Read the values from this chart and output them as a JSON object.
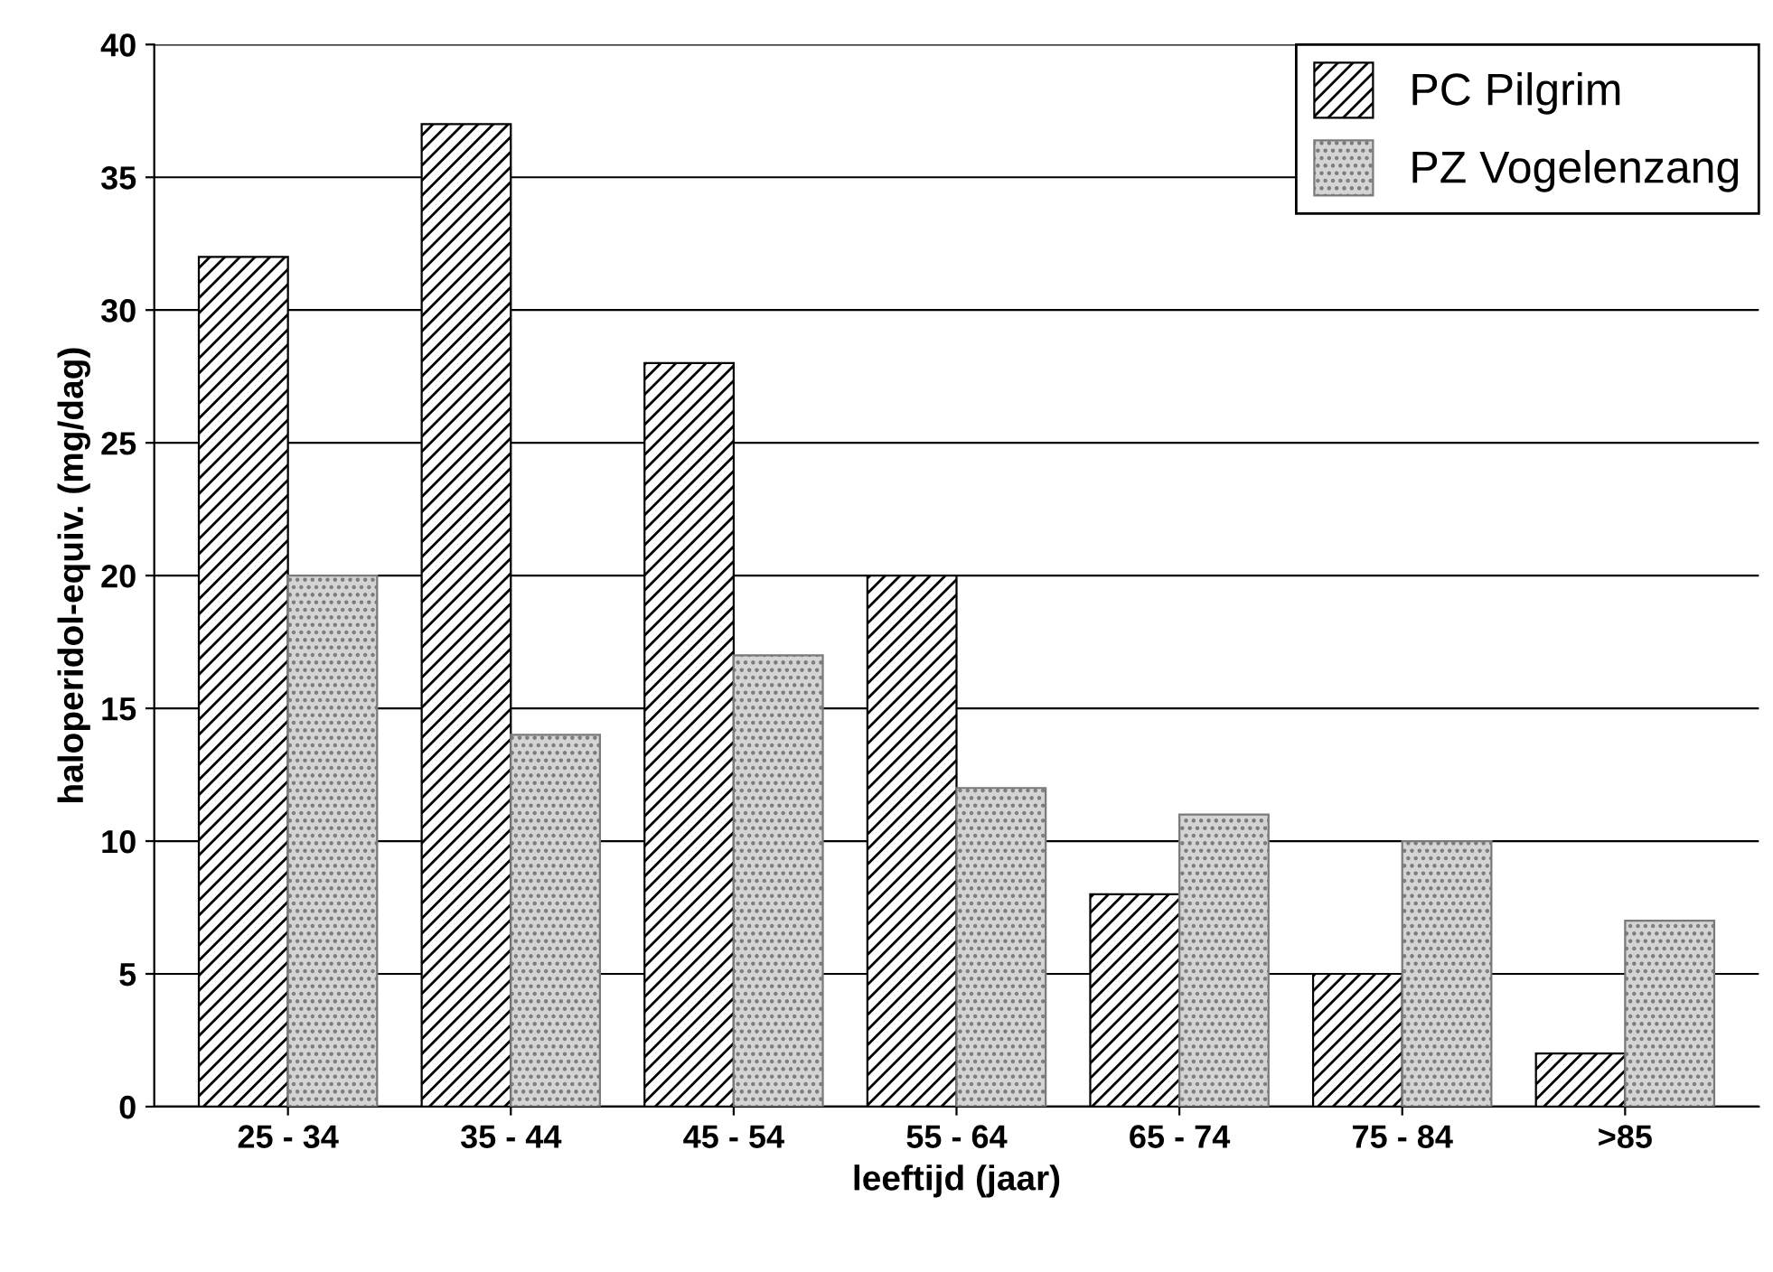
{
  "chart_data": {
    "type": "bar",
    "xlabel": "leeftijd (jaar)",
    "ylabel": "haloperidol-equiv. (mg/dag)",
    "categories": [
      "25 - 34",
      "35 - 44",
      "45 - 54",
      "55 - 64",
      "65 - 74",
      "75 - 84",
      ">85"
    ],
    "series": [
      {
        "name": "PC Pilgrim",
        "color": "#000000",
        "values": [
          32,
          37,
          28,
          20,
          8,
          5,
          2
        ]
      },
      {
        "name": "PZ Vogelenzang",
        "color": "#7a7a7a",
        "values": [
          20,
          14,
          17,
          12,
          11,
          10,
          7
        ]
      }
    ],
    "ylim": [
      0,
      40
    ],
    "yticks": [
      0,
      5,
      10,
      15,
      20,
      25,
      30,
      35,
      40
    ],
    "grid": "y",
    "legend": "top right"
  }
}
